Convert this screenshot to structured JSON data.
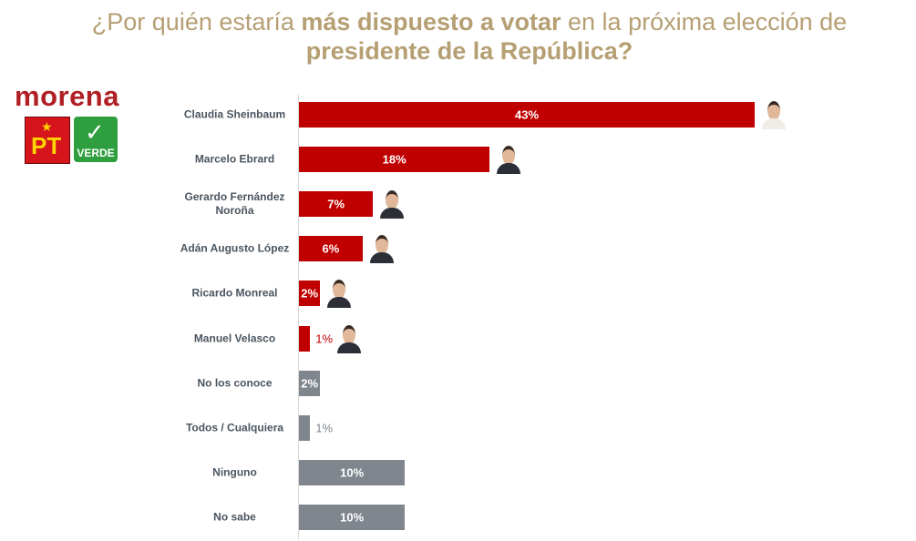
{
  "chart_data": {
    "type": "barh",
    "title_parts": [
      {
        "text": "¿Por quién estaría ",
        "bold": false
      },
      {
        "text": "más dispuesto a votar",
        "bold": true
      },
      {
        "text": " en la próxima elección de ",
        "bold": false
      },
      {
        "text": "presidente de la República?",
        "bold": true
      }
    ],
    "logos": [
      "morena",
      "PT",
      "VERDE"
    ],
    "categories": [
      "Claudia Sheinbaum",
      "Marcelo Ebrard",
      "Gerardo Fernández Noroña",
      "Adán Augusto López",
      "Ricardo Monreal",
      "Manuel Velasco",
      "No los conoce",
      "Todos / Cualquiera",
      "Ninguno",
      "No sabe"
    ],
    "values": [
      43,
      18,
      7,
      6,
      2,
      1,
      2,
      1,
      10,
      10
    ],
    "value_labels": [
      "43%",
      "18%",
      "7%",
      "6%",
      "2%",
      "1%",
      "2%",
      "1%",
      "10%",
      "10%"
    ],
    "colors": [
      "#c00000",
      "#c00000",
      "#c00000",
      "#c00000",
      "#c00000",
      "#c00000",
      "#7f868d",
      "#7f868d",
      "#7f868d",
      "#7f868d"
    ],
    "xlim": [
      0,
      43
    ]
  }
}
